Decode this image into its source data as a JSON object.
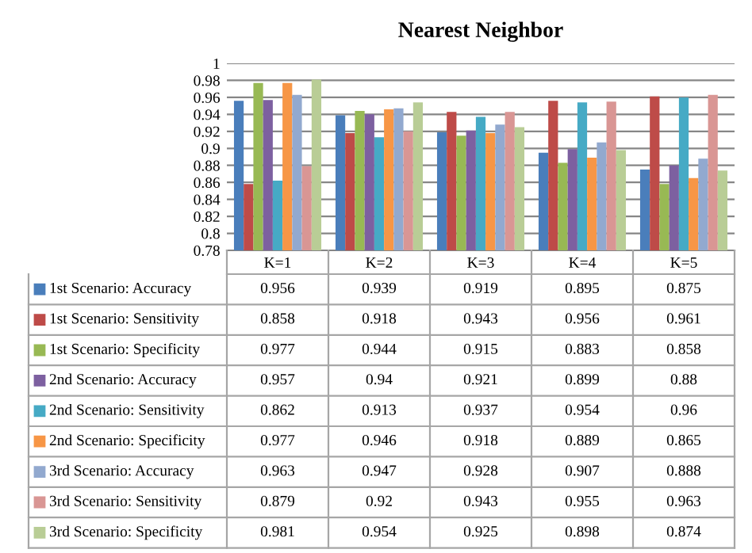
{
  "chart_data": {
    "type": "bar",
    "title": "Nearest Neighbor",
    "categories": [
      "K=1",
      "K=2",
      "K=3",
      "K=4",
      "K=5"
    ],
    "series": [
      {
        "name": "1st Scenario: Accuracy",
        "color": "#4a7ebb",
        "values": [
          0.956,
          0.939,
          0.919,
          0.895,
          0.875
        ]
      },
      {
        "name": "1st Scenario: Sensitivity",
        "color": "#be4b48",
        "values": [
          0.858,
          0.918,
          0.943,
          0.956,
          0.961
        ]
      },
      {
        "name": "1st Scenario: Specificity",
        "color": "#98b954",
        "values": [
          0.977,
          0.944,
          0.915,
          0.883,
          0.858
        ]
      },
      {
        "name": "2nd Scenario: Accuracy",
        "color": "#7d60a0",
        "values": [
          0.957,
          0.94,
          0.921,
          0.899,
          0.88
        ]
      },
      {
        "name": "2nd Scenario: Sensitivity",
        "color": "#46aac5",
        "values": [
          0.862,
          0.913,
          0.937,
          0.954,
          0.96
        ]
      },
      {
        "name": "2nd Scenario: Specificity",
        "color": "#f79646",
        "values": [
          0.977,
          0.946,
          0.918,
          0.889,
          0.865
        ]
      },
      {
        "name": "3rd Scenario: Accuracy",
        "color": "#92a9cf",
        "values": [
          0.963,
          0.947,
          0.928,
          0.907,
          0.888
        ]
      },
      {
        "name": "3rd Scenario: Sensitivity",
        "color": "#d99694",
        "values": [
          0.879,
          0.92,
          0.943,
          0.955,
          0.963
        ]
      },
      {
        "name": "3rd Scenario: Specificity",
        "color": "#b9cd96",
        "values": [
          0.981,
          0.954,
          0.925,
          0.898,
          0.874
        ]
      }
    ],
    "ylim": [
      0.78,
      1
    ],
    "yticks": [
      0.78,
      0.8,
      0.82,
      0.84,
      0.86,
      0.88,
      0.9,
      0.92,
      0.94,
      0.96,
      0.98,
      1
    ],
    "grid": "y",
    "legend": "bottom",
    "data_labels": true
  }
}
